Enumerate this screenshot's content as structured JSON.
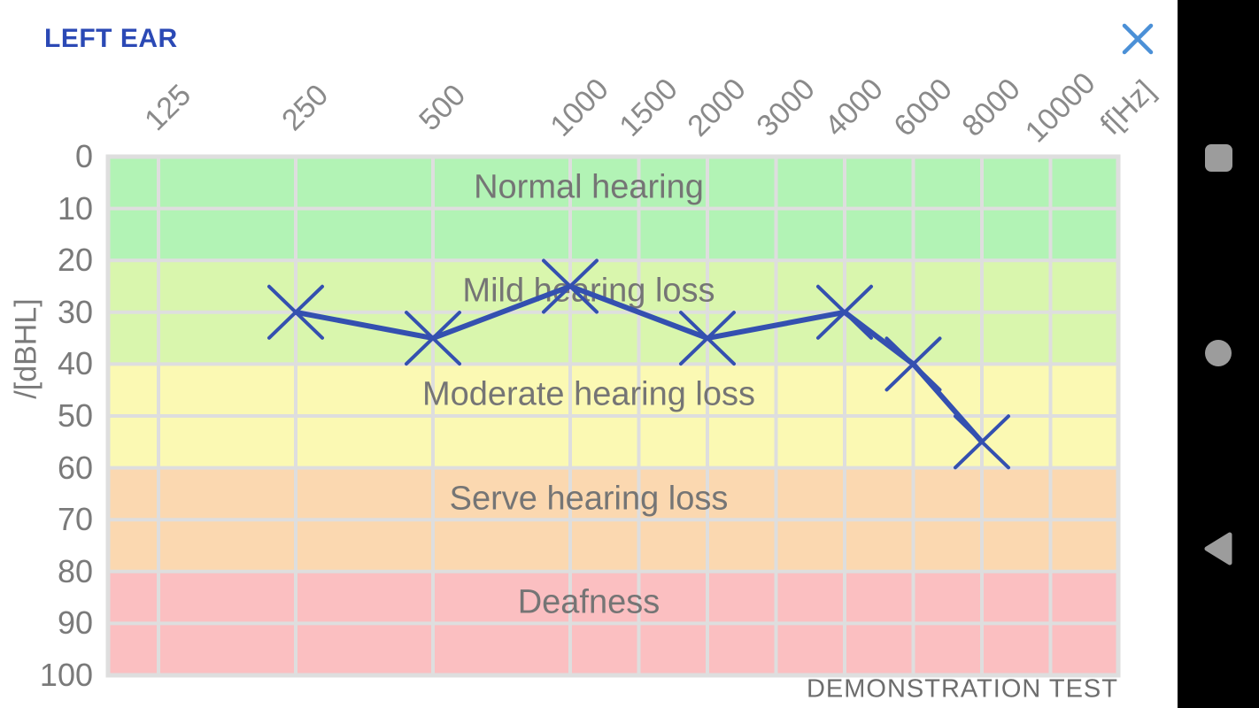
{
  "header": {
    "title": "LEFT EAR",
    "close_icon": "close-x"
  },
  "colors": {
    "accent_blue": "#2b49b5",
    "close_blue": "#4b90d7",
    "series_blue": "#3450b0",
    "grid_gray": "#dedede"
  },
  "chart_data": {
    "type": "line",
    "x_axis": {
      "label": "f[Hz]",
      "ticks": [
        "125",
        "250",
        "500",
        "1000",
        "1500",
        "2000",
        "3000",
        "4000",
        "6000",
        "8000",
        "10000"
      ]
    },
    "y_axis": {
      "label": "/[dBHL]",
      "ticks": [
        "0",
        "10",
        "20",
        "30",
        "40",
        "50",
        "60",
        "70",
        "80",
        "90",
        "100"
      ],
      "min": 0,
      "max": 100
    },
    "grid": true,
    "zones": [
      {
        "label": "Normal hearing",
        "from": 0,
        "to": 20,
        "color": "#b2f3b5"
      },
      {
        "label": "Mild hearing loss",
        "from": 20,
        "to": 40,
        "color": "#d9f6ad"
      },
      {
        "label": "Moderate hearing loss",
        "from": 40,
        "to": 60,
        "color": "#fbf9b3"
      },
      {
        "label": "Serve hearing loss",
        "from": 60,
        "to": 80,
        "color": "#fbd8b0"
      },
      {
        "label": "Deafness",
        "from": 80,
        "to": 100,
        "color": "#fbbfc1"
      }
    ],
    "series": [
      {
        "name": "left-ear-thresholds",
        "marker": "x",
        "color": "#3450b0",
        "points": [
          {
            "f": 250,
            "db": 30
          },
          {
            "f": 500,
            "db": 35
          },
          {
            "f": 1000,
            "db": 25
          },
          {
            "f": 2000,
            "db": 35
          },
          {
            "f": 4000,
            "db": 30
          },
          {
            "f": 6000,
            "db": 40
          },
          {
            "f": 8000,
            "db": 55
          }
        ]
      }
    ],
    "footnote": "DEMONSTRATION TEST"
  },
  "navbar": {
    "icons": [
      "recents-square",
      "home-circle",
      "back-triangle"
    ]
  }
}
